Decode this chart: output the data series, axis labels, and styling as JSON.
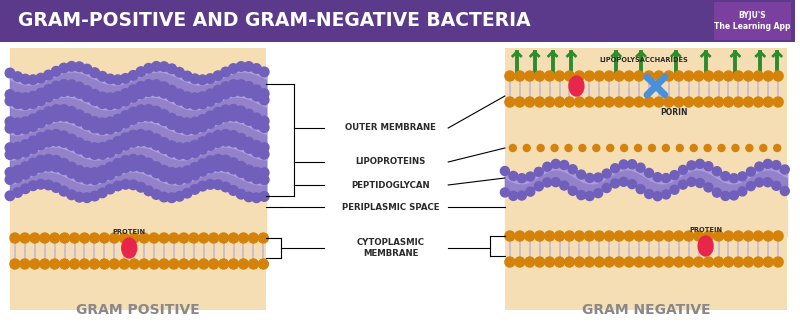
{
  "title": "GRAM-POSITIVE AND GRAM-NEGATIVE BACTERIA",
  "title_bg": "#5b3a8c",
  "title_color": "#ffffff",
  "bg_color": "#ffffff",
  "cell_bg": "#f5deb3",
  "membrane_color": "#7b5fb5",
  "membrane_light": "#c8b8e8",
  "head_color": "#d4820a",
  "protein_color": "#e8254a",
  "label_color": "#2a2a2a",
  "label_font": 7.5,
  "gram_positive_label": "GRAM POSITIVE",
  "gram_negative_label": "GRAM NEGATIVE",
  "outer_membrane": "OUTER MEMBRANE",
  "lipoproteins": "LIPOPROTEINS",
  "peptidoglycan": "PEPTIDOGLYCAN",
  "periplasmic": "PERIPLASMIC SPACE",
  "cytoplasmic": "CYTOPLASMIC\nMEMBRANE",
  "protein_label": "PROTEIN",
  "porin_label": "PORIN",
  "lps_label": "LIPOPOLYSACCHARIDES",
  "green_spike_color": "#2d8c2d",
  "porin_color": "#4a90d9",
  "byju_text": "BYJU'S"
}
